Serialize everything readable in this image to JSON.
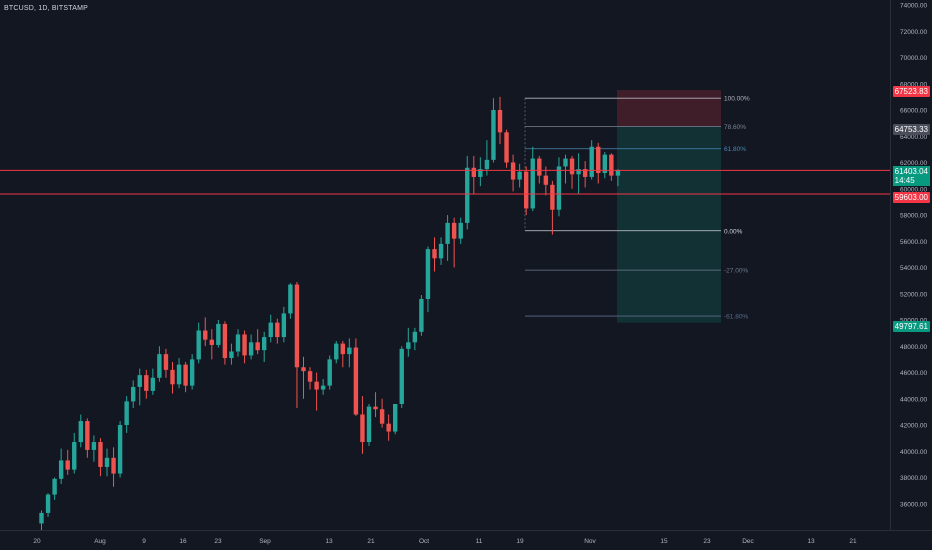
{
  "header": {
    "symbol_title": "BTCUSD, 1D, BITSTAMP"
  },
  "price_axis": {
    "ticks": [
      "74000.00",
      "72000.00",
      "70000.00",
      "68000.00",
      "66000.00",
      "64000.00",
      "62000.00",
      "60000.00",
      "58000.00",
      "56000.00",
      "54000.00",
      "52000.00",
      "50000.00",
      "48000.00",
      "46000.00",
      "44000.00",
      "42000.00",
      "40000.00",
      "38000.00",
      "36000.00"
    ],
    "tags": {
      "stop": "67523.83",
      "level_a": "64753.33",
      "current_price": "61403.04",
      "countdown": "14:45",
      "support": "59603.00",
      "target": "49797.61"
    }
  },
  "time_axis": {
    "ticks": [
      "20",
      "Aug",
      "9",
      "16",
      "23",
      "Sep",
      "13",
      "21",
      "Oct",
      "11",
      "19",
      "Nov",
      "15",
      "23",
      "Dec",
      "13",
      "21"
    ]
  },
  "fibonacci": {
    "levels": [
      {
        "label": "100.00%",
        "price": 66900,
        "color": "#b2b5be"
      },
      {
        "label": "78.60%",
        "price": 64750,
        "color": "#7a8391"
      },
      {
        "label": "61.80%",
        "price": 63050,
        "color": "#4a87b3"
      },
      {
        "label": "0.00%",
        "price": 56800,
        "color": "#d1d4dc"
      },
      {
        "label": "-27.00%",
        "price": 53800,
        "color": "#6e7a8c"
      },
      {
        "label": "-61.80%",
        "price": 50300,
        "color": "#5a6b8a"
      }
    ]
  },
  "horizontal_lines": [
    {
      "price": 61400,
      "color": "#f23645"
    },
    {
      "price": 59603,
      "color": "#f23645"
    }
  ],
  "position_tool": {
    "entry": 64753.33,
    "stop": 67523.83,
    "target": 49797.61,
    "stop_color": "#f23645",
    "target_color": "#089981"
  },
  "colors": {
    "up": "#26a69a",
    "down": "#ef5350",
    "background": "#131722",
    "axis_text": "#b2b5be"
  },
  "chart_data": {
    "type": "candlestick",
    "title": "BTCUSD, 1D, BITSTAMP",
    "ylim": [
      35000,
      74500
    ],
    "series": [
      {
        "name": "BTCUSD",
        "ohlc": [
          [
            34500,
            35500,
            34000,
            35300
          ],
          [
            35300,
            36800,
            35000,
            36700
          ],
          [
            36700,
            38000,
            36300,
            37900
          ],
          [
            37900,
            40200,
            37500,
            39300
          ],
          [
            39300,
            40100,
            38200,
            38600
          ],
          [
            38600,
            41400,
            38300,
            40700
          ],
          [
            40700,
            42800,
            40300,
            42300
          ],
          [
            42300,
            42500,
            39500,
            40100
          ],
          [
            40100,
            41200,
            39200,
            40700
          ],
          [
            40700,
            41000,
            38100,
            38800
          ],
          [
            38800,
            40200,
            38100,
            39500
          ],
          [
            39500,
            40300,
            37300,
            38300
          ],
          [
            38300,
            42300,
            38000,
            42000
          ],
          [
            42000,
            44200,
            41400,
            43800
          ],
          [
            43800,
            45400,
            43300,
            44900
          ],
          [
            44900,
            46300,
            43500,
            45800
          ],
          [
            45800,
            46200,
            44000,
            44600
          ],
          [
            44600,
            46300,
            44300,
            45600
          ],
          [
            45600,
            48000,
            45300,
            47400
          ],
          [
            47400,
            47800,
            45600,
            46200
          ],
          [
            46200,
            46800,
            44400,
            45100
          ],
          [
            45100,
            47100,
            44800,
            46600
          ],
          [
            46600,
            46800,
            44500,
            45000
          ],
          [
            45000,
            47400,
            44700,
            47000
          ],
          [
            47000,
            49800,
            46700,
            49200
          ],
          [
            49200,
            50200,
            48000,
            48500
          ],
          [
            48500,
            49300,
            47000,
            48100
          ],
          [
            48100,
            50000,
            47900,
            49700
          ],
          [
            49700,
            49900,
            46600,
            47100
          ],
          [
            47100,
            48200,
            46600,
            47600
          ],
          [
            47600,
            49300,
            47200,
            48900
          ],
          [
            48900,
            49200,
            46700,
            47300
          ],
          [
            47300,
            48900,
            47000,
            48300
          ],
          [
            48300,
            49300,
            47400,
            47700
          ],
          [
            47700,
            49100,
            46800,
            48700
          ],
          [
            48700,
            50400,
            48300,
            49800
          ],
          [
            49800,
            50100,
            48200,
            48700
          ],
          [
            48700,
            51000,
            48300,
            50500
          ],
          [
            50500,
            52800,
            50100,
            52700
          ],
          [
            52700,
            52900,
            43300,
            46400
          ],
          [
            46400,
            47200,
            44000,
            46100
          ],
          [
            46100,
            46400,
            44700,
            45300
          ],
          [
            45300,
            46000,
            43100,
            44700
          ],
          [
            44700,
            45500,
            44300,
            45000
          ],
          [
            45000,
            47300,
            44700,
            47000
          ],
          [
            47000,
            48400,
            46700,
            48200
          ],
          [
            48200,
            48400,
            46400,
            47400
          ],
          [
            47400,
            48600,
            46400,
            47900
          ],
          [
            47900,
            48600,
            42700,
            42800
          ],
          [
            42800,
            44200,
            39800,
            40700
          ],
          [
            40700,
            43600,
            40400,
            43400
          ],
          [
            43400,
            44500,
            42600,
            43200
          ],
          [
            43200,
            44000,
            41800,
            42100
          ],
          [
            42100,
            42800,
            40800,
            41500
          ],
          [
            41500,
            43600,
            41300,
            43600
          ],
          [
            43600,
            48000,
            43300,
            47800
          ],
          [
            47800,
            49400,
            47200,
            48300
          ],
          [
            48300,
            49400,
            47700,
            49100
          ],
          [
            49100,
            51900,
            48800,
            51600
          ],
          [
            51600,
            55600,
            50600,
            55400
          ],
          [
            55400,
            56300,
            53700,
            54700
          ],
          [
            54700,
            56300,
            54200,
            55800
          ],
          [
            55800,
            58000,
            54500,
            57400
          ],
          [
            57400,
            57800,
            54000,
            56200
          ],
          [
            56200,
            57800,
            55800,
            57400
          ],
          [
            57400,
            62500,
            56900,
            61600
          ],
          [
            61600,
            62500,
            59600,
            60900
          ],
          [
            60900,
            62400,
            60200,
            61500
          ],
          [
            61500,
            63700,
            61000,
            62200
          ],
          [
            62200,
            66900,
            62000,
            66000
          ],
          [
            66000,
            67000,
            63400,
            64300
          ],
          [
            64300,
            64500,
            61600,
            62000
          ],
          [
            62000,
            62600,
            59800,
            60700
          ],
          [
            60700,
            61900,
            60100,
            61300
          ],
          [
            61300,
            61700,
            58000,
            58500
          ],
          [
            58500,
            63200,
            58300,
            62300
          ],
          [
            62300,
            62500,
            60400,
            61000
          ],
          [
            61000,
            61700,
            59500,
            60300
          ],
          [
            60300,
            60600,
            56500,
            58400
          ],
          [
            58400,
            62400,
            57900,
            61700
          ],
          [
            61700,
            62600,
            60400,
            62300
          ],
          [
            62300,
            62500,
            60000,
            61100
          ],
          [
            61100,
            62700,
            59600,
            61500
          ],
          [
            61500,
            62100,
            60100,
            60900
          ],
          [
            60900,
            63700,
            60700,
            63200
          ],
          [
            63200,
            63500,
            60400,
            61200
          ],
          [
            61200,
            62800,
            60800,
            62600
          ],
          [
            62600,
            62700,
            60600,
            61000
          ],
          [
            61000,
            61500,
            60200,
            61400
          ]
        ]
      }
    ]
  }
}
